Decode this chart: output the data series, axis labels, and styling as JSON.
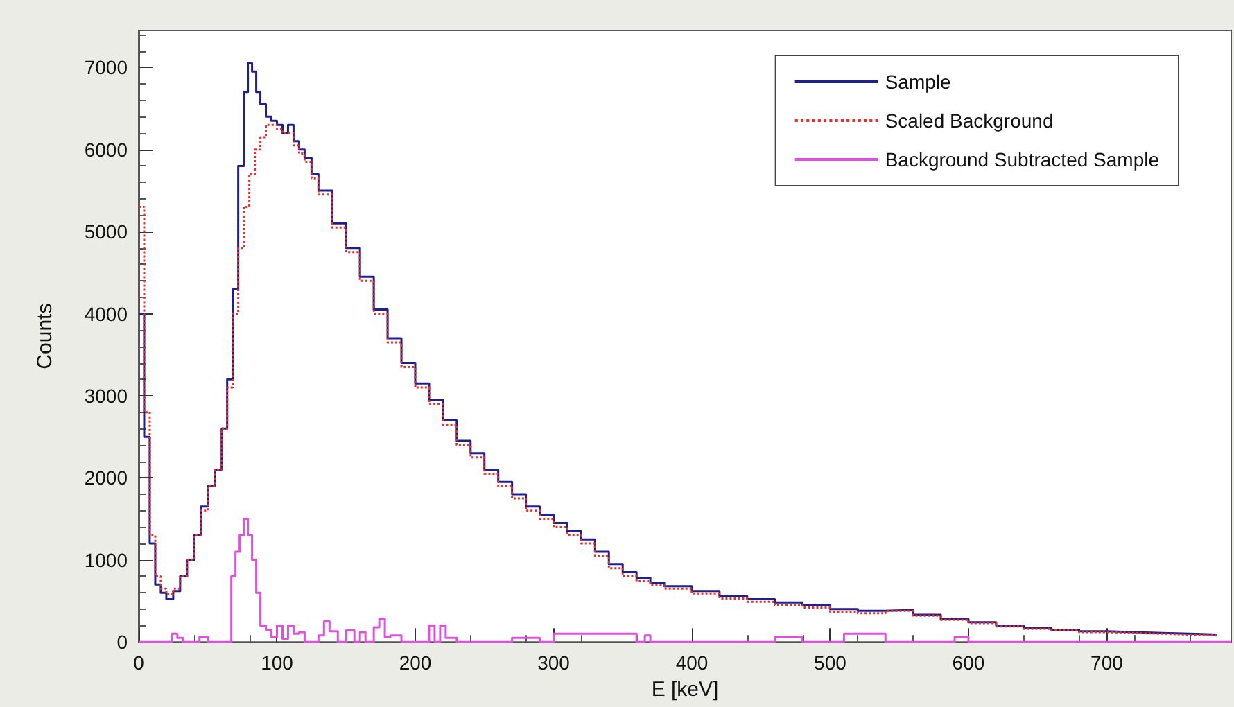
{
  "chart_data": {
    "type": "step",
    "xlabel": "E [keV]",
    "ylabel": "Counts",
    "xlim": [
      0,
      790
    ],
    "xticks": [
      0,
      100,
      200,
      300,
      400,
      500,
      600,
      700
    ],
    "ylim": [
      0,
      7450
    ],
    "yticks": [
      0,
      1000,
      2000,
      3000,
      4000,
      5000,
      6000,
      7000
    ],
    "grid": false,
    "legend": "top right",
    "marker": "none",
    "series": [
      {
        "name": "Sample",
        "color": "#1f1f8f",
        "line_style": "solid",
        "x": [
          0,
          4,
          8,
          12,
          16,
          20,
          25,
          30,
          35,
          40,
          45,
          50,
          55,
          60,
          64,
          68,
          72,
          76,
          79,
          82,
          85,
          88,
          92,
          96,
          100,
          104,
          108,
          112,
          116,
          120,
          125,
          130,
          140,
          150,
          160,
          170,
          180,
          190,
          200,
          210,
          220,
          230,
          240,
          250,
          260,
          270,
          280,
          290,
          300,
          310,
          320,
          330,
          340,
          350,
          360,
          370,
          380,
          400,
          420,
          440,
          460,
          480,
          500,
          520,
          540,
          560,
          580,
          600,
          620,
          640,
          660,
          680,
          700,
          720,
          740,
          760,
          780
        ],
        "values": [
          4000,
          2500,
          1200,
          700,
          600,
          520,
          620,
          800,
          1000,
          1300,
          1650,
          1900,
          2100,
          2600,
          3200,
          4300,
          5800,
          6700,
          7050,
          6950,
          6700,
          6550,
          6400,
          6350,
          6300,
          6200,
          6300,
          6100,
          6000,
          5900,
          5700,
          5500,
          5100,
          4800,
          4450,
          4050,
          3700,
          3400,
          3150,
          2950,
          2700,
          2450,
          2300,
          2100,
          1950,
          1800,
          1650,
          1550,
          1450,
          1350,
          1250,
          1100,
          950,
          850,
          780,
          720,
          680,
          620,
          560,
          520,
          480,
          450,
          400,
          380,
          390,
          330,
          280,
          240,
          200,
          170,
          150,
          130,
          120,
          110,
          100,
          90,
          80
        ]
      },
      {
        "name": "Scaled Background",
        "color": "#e8302a",
        "line_style": "dotted",
        "x": [
          0,
          4,
          8,
          12,
          16,
          20,
          25,
          30,
          35,
          40,
          45,
          50,
          55,
          60,
          64,
          68,
          72,
          76,
          80,
          84,
          88,
          92,
          96,
          100,
          104,
          108,
          112,
          116,
          120,
          125,
          130,
          140,
          150,
          160,
          170,
          180,
          190,
          200,
          210,
          220,
          230,
          240,
          250,
          260,
          270,
          280,
          290,
          300,
          310,
          320,
          330,
          340,
          350,
          360,
          370,
          380,
          400,
          420,
          440,
          460,
          480,
          500,
          520,
          540,
          560,
          580,
          600,
          620,
          640,
          660,
          680,
          700,
          720,
          740,
          760,
          780
        ],
        "values": [
          5300,
          2800,
          1300,
          800,
          650,
          580,
          650,
          800,
          1000,
          1300,
          1600,
          1900,
          2100,
          2600,
          3100,
          4000,
          4800,
          5300,
          5700,
          6000,
          6150,
          6300,
          6300,
          6250,
          6200,
          6200,
          6050,
          5950,
          5850,
          5650,
          5450,
          5050,
          4750,
          4400,
          4000,
          3650,
          3350,
          3100,
          2900,
          2650,
          2400,
          2250,
          2050,
          1900,
          1750,
          1600,
          1500,
          1400,
          1300,
          1200,
          1050,
          900,
          800,
          740,
          690,
          650,
          590,
          530,
          490,
          450,
          420,
          370,
          350,
          380,
          320,
          270,
          230,
          190,
          160,
          140,
          120,
          110,
          100,
          90,
          80,
          70
        ]
      },
      {
        "name": "Background Subtracted Sample",
        "color": "#e050e0",
        "line_style": "solid",
        "x": [
          0,
          20,
          24,
          28,
          32,
          40,
          44,
          50,
          56,
          64,
          67,
          70,
          73,
          76,
          79,
          82,
          85,
          88,
          92,
          96,
          100,
          104,
          108,
          112,
          116,
          120,
          130,
          134,
          138,
          144,
          150,
          156,
          160,
          164,
          170,
          174,
          178,
          182,
          190,
          200,
          210,
          214,
          218,
          222,
          230,
          250,
          270,
          290,
          300,
          360,
          366,
          370,
          440,
          460,
          480,
          500,
          510,
          520,
          530,
          540,
          580,
          590,
          600,
          790
        ],
        "values": [
          0,
          0,
          100,
          50,
          0,
          0,
          60,
          0,
          0,
          0,
          800,
          1100,
          1300,
          1500,
          1300,
          1000,
          600,
          200,
          150,
          60,
          200,
          40,
          200,
          100,
          120,
          0,
          80,
          250,
          130,
          0,
          140,
          0,
          120,
          0,
          180,
          280,
          60,
          80,
          0,
          0,
          200,
          0,
          200,
          50,
          0,
          0,
          50,
          0,
          100,
          0,
          80,
          0,
          0,
          60,
          0,
          0,
          100,
          100,
          100,
          0,
          0,
          60,
          0,
          0
        ]
      }
    ]
  }
}
